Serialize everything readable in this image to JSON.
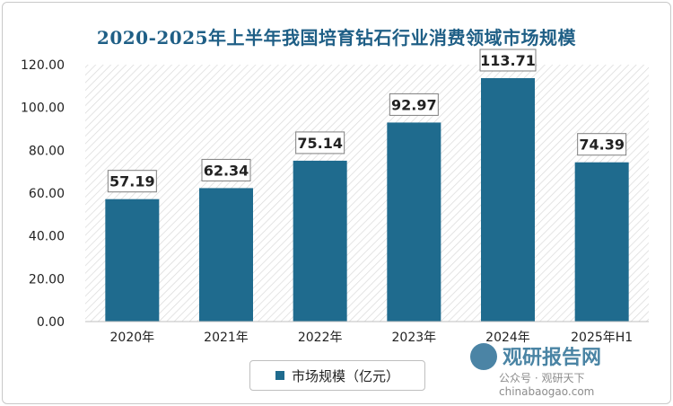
{
  "chart_data": {
    "type": "bar",
    "title": "2020-2025年上半年我国培育钻石行业消费领域市场规模",
    "categories": [
      "2020年",
      "2021年",
      "2022年",
      "2023年",
      "2024年",
      "2025年H1"
    ],
    "series": [
      {
        "name": "市场规模（亿元）",
        "values": [
          57.19,
          62.34,
          75.14,
          92.97,
          113.71,
          74.39
        ]
      }
    ],
    "data_labels": [
      "57.19",
      "62.34",
      "75.14",
      "92.97",
      "113.71",
      "74.39"
    ],
    "y_ticks": [
      "0.00",
      "20.00",
      "40.00",
      "60.00",
      "80.00",
      "100.00",
      "120.00"
    ],
    "ylim": [
      0,
      120
    ],
    "xlabel": "",
    "ylabel": "",
    "grid": false,
    "legend_position": "bottom",
    "colors": {
      "bar": "#1f6b8e",
      "title": "#1f5f86",
      "plot_hatch": "#d9d9d9"
    }
  },
  "watermark": {
    "logo_text": "观研报告网",
    "sub_text": "公众号 · 观研天下 chinabaogao.com"
  }
}
